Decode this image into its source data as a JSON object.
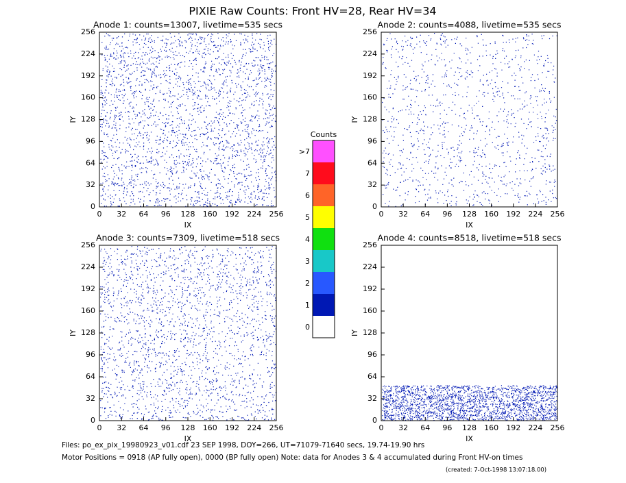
{
  "title": "PIXIE Raw Counts:  Front HV=28, Rear HV=34",
  "chart_data": [
    {
      "type": "heatmap",
      "title": "Anode 1: counts=13007, livetime=535 secs",
      "x_label": "IX",
      "y_label": "IY",
      "xlim": [
        0,
        256
      ],
      "ylim": [
        0,
        256
      ],
      "xticks": [
        0,
        32,
        64,
        96,
        128,
        160,
        192,
        224,
        256
      ],
      "yticks": [
        0,
        32,
        64,
        96,
        128,
        160,
        192,
        224,
        256
      ]
    },
    {
      "type": "heatmap",
      "title": "Anode 2: counts=4088, livetime=535 secs",
      "x_label": "IX",
      "y_label": "IY",
      "xlim": [
        0,
        256
      ],
      "ylim": [
        0,
        256
      ],
      "xticks": [
        0,
        32,
        64,
        96,
        128,
        160,
        192,
        224,
        256
      ],
      "yticks": [
        0,
        32,
        64,
        96,
        128,
        160,
        192,
        224,
        256
      ]
    },
    {
      "type": "heatmap",
      "title": "Anode 3: counts=7309, livetime=518 secs",
      "x_label": "IX",
      "y_label": "IY",
      "xlim": [
        0,
        256
      ],
      "ylim": [
        0,
        256
      ],
      "xticks": [
        0,
        32,
        64,
        96,
        128,
        160,
        192,
        224,
        256
      ],
      "yticks": [
        0,
        32,
        64,
        96,
        128,
        160,
        192,
        224,
        256
      ]
    },
    {
      "type": "heatmap",
      "title": "Anode 4: counts=8518, livetime=518 secs",
      "x_label": "IX",
      "y_label": "IY",
      "xlim": [
        0,
        256
      ],
      "ylim": [
        0,
        256
      ],
      "xticks": [
        0,
        32,
        64,
        96,
        128,
        160,
        192,
        224,
        256
      ],
      "yticks": [
        0,
        32,
        64,
        96,
        128,
        160,
        192,
        224,
        256
      ]
    }
  ],
  "colorbar": {
    "title": "Counts",
    "ticks": [
      0,
      1,
      2,
      3,
      4,
      5,
      6,
      7,
      {
        "value": 8,
        "label": ">7"
      }
    ],
    "colors": [
      "#ffffff",
      "#0018b4",
      "#2858ff",
      "#18c8c8",
      "#10e010",
      "#ffff00",
      "#ff6428",
      "#ff0c1c",
      "#ff50ff"
    ]
  },
  "footer": {
    "files": "Files: po_ex_pix_19980923_v01.cdf    23 SEP 1998, DOY=266, UT=71079-71640 secs, 19.74-19.90 hrs",
    "motor": "Motor Positions = 0918 (AP fully open), 0000 (BP fully open)    Note: data for Anodes 3 & 4 accumulated during Front HV-on times",
    "created": "(created:  7-Oct-1998 13:07:18.00)"
  }
}
